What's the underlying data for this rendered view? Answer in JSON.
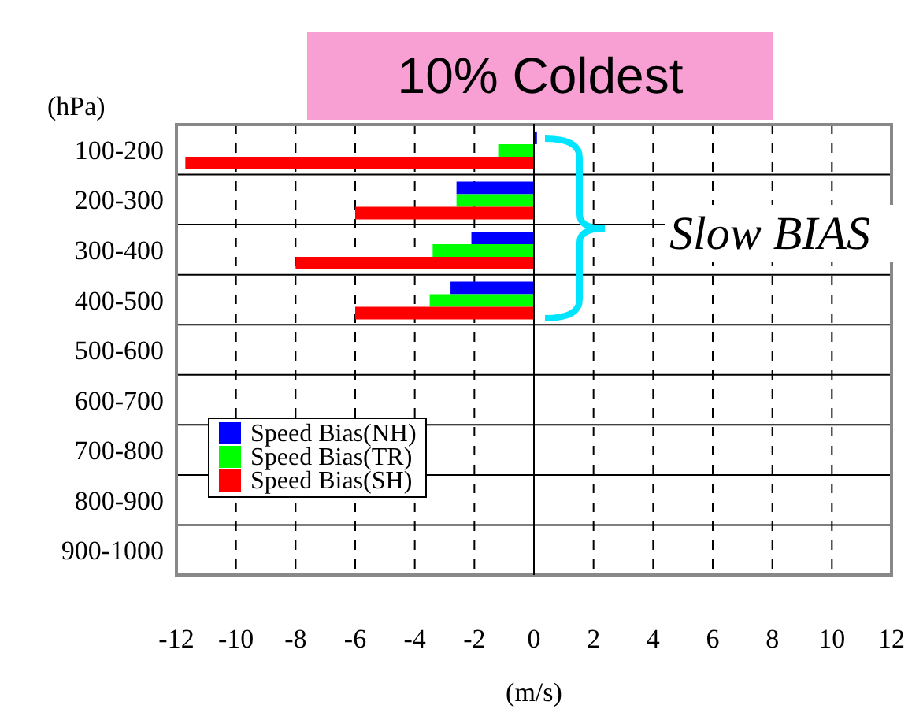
{
  "chart_data": {
    "type": "bar",
    "orientation": "horizontal",
    "title": "10% Coldest",
    "ylabel": "(hPa)",
    "xlabel": "(m/s)",
    "categories": [
      "100-200",
      "200-300",
      "300-400",
      "400-500",
      "500-600",
      "600-700",
      "700-800",
      "800-900",
      "900-1000"
    ],
    "series": [
      {
        "name": "Speed Bias(NH)",
        "color": "#0000ff",
        "values": [
          0.1,
          -2.6,
          -2.1,
          -2.8,
          null,
          null,
          null,
          null,
          null
        ]
      },
      {
        "name": "Speed Bias(TR)",
        "color": "#00ff00",
        "values": [
          -1.2,
          -2.6,
          -3.4,
          -3.5,
          null,
          null,
          null,
          null,
          null
        ]
      },
      {
        "name": "Speed Bias(SH)",
        "color": "#ff0000",
        "values": [
          -11.7,
          -6.0,
          -8.0,
          -6.0,
          null,
          null,
          null,
          null,
          null
        ]
      }
    ],
    "xlim": [
      -12,
      12
    ],
    "xticks": [
      -12,
      -10,
      -8,
      -6,
      -4,
      -2,
      0,
      2,
      4,
      6,
      8,
      10,
      12
    ],
    "grid": true,
    "legend": "bottom left",
    "annotations": [
      "Slow BIAS"
    ]
  }
}
